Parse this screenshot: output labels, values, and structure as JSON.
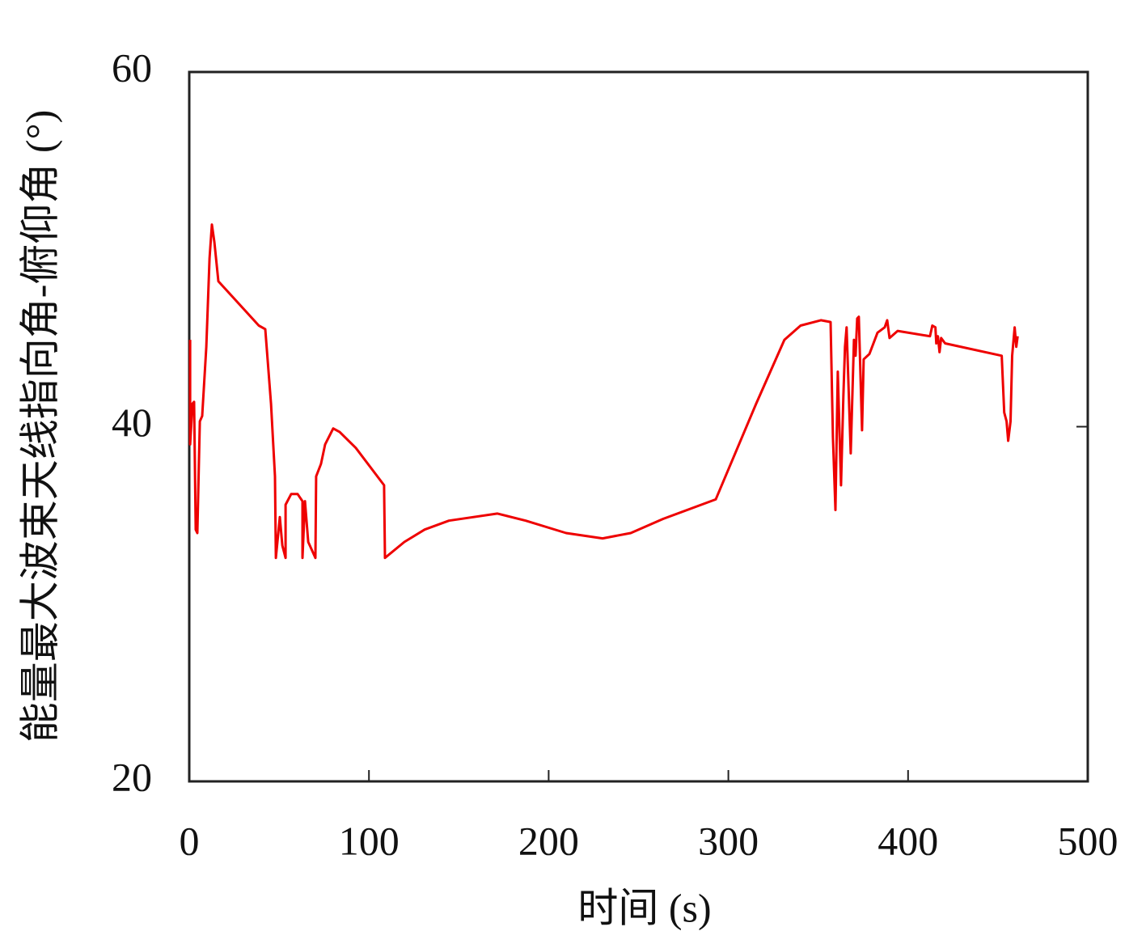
{
  "chart_data": {
    "type": "line",
    "x_label": "时间 (s)",
    "y_label": "能量最大波束天线指向角-俯仰角 (°)",
    "xlim": [
      0,
      500
    ],
    "xticks": [
      0,
      100,
      200,
      300,
      400,
      500
    ],
    "ylim": [
      20,
      60
    ],
    "yticks": [
      20,
      40,
      60
    ],
    "grid": false,
    "series": [
      {
        "color": "#ee0000",
        "x": [
          0.5,
          0.5,
          1.8,
          2.7,
          3.6,
          4.5,
          5.9,
          7.2,
          9.5,
          11.3,
          12.6,
          14,
          16.2,
          25.2,
          38.7,
          42.3,
          45.5,
          47.7,
          48.2,
          50.4,
          51.8,
          53.6,
          53.6,
          56.7,
          60.3,
          63,
          63,
          64.4,
          66.2,
          70.2,
          70.6,
          73.3,
          75.6,
          80.1,
          83.7,
          92.7,
          108.4,
          108.9,
          119.7,
          131,
          144.5,
          171.5,
          187.2,
          209.7,
          230,
          245.7,
          263.7,
          293,
          315.5,
          331.2,
          340.2,
          351.5,
          356.9,
          358.2,
          359.6,
          360.9,
          362.7,
          364,
          364.9,
          365.8,
          368.1,
          369.9,
          370.8,
          371.7,
          372.6,
          374.4,
          375.3,
          378.5,
          383,
          387,
          388.4,
          389.7,
          394.2,
          412.2,
          413.5,
          415.2,
          415.7,
          416.6,
          417.5,
          418.4,
          420.6,
          452.1,
          453.5,
          454.8,
          455.7,
          457,
          457.9,
          459.3,
          460.2,
          461
        ],
        "values": [
          44.9,
          39.0,
          41.3,
          41.4,
          34.2,
          34.0,
          40.3,
          40.6,
          44.5,
          49.5,
          51.4,
          50.4,
          48.2,
          47.2,
          45.7,
          45.5,
          41.3,
          37.2,
          32.6,
          34.9,
          33.3,
          32.6,
          35.6,
          36.2,
          36.2,
          35.8,
          32.6,
          35.8,
          33.5,
          32.6,
          37.2,
          37.9,
          39.0,
          39.9,
          39.7,
          38.8,
          36.7,
          32.6,
          33.5,
          34.2,
          34.7,
          35.1,
          34.7,
          34.0,
          33.7,
          34.0,
          34.8,
          35.9,
          41.3,
          44.9,
          45.7,
          46.0,
          45.9,
          39.4,
          35.3,
          43.1,
          36.7,
          41.7,
          44.5,
          45.6,
          38.5,
          44.9,
          44.0,
          46.1,
          46.2,
          39.8,
          43.8,
          44.1,
          45.3,
          45.6,
          46.0,
          45.0,
          45.4,
          45.1,
          45.7,
          45.6,
          44.7,
          45.1,
          44.2,
          45.0,
          44.7,
          44.0,
          40.8,
          40.3,
          39.2,
          40.3,
          44.0,
          45.6,
          44.5,
          45.1
        ]
      }
    ]
  }
}
